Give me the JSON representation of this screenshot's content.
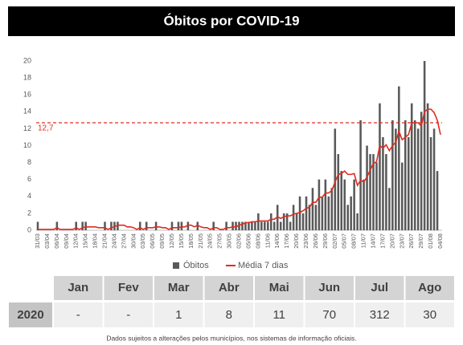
{
  "chart_data": {
    "type": "bar",
    "title": "Óbitos por COVID-19",
    "categories": [
      "31/03",
      null,
      null,
      "03/04",
      null,
      null,
      "06/04",
      null,
      null,
      "09/04",
      null,
      null,
      "12/04",
      null,
      null,
      "15/04",
      null,
      null,
      "18/04",
      null,
      null,
      "21/04",
      null,
      null,
      "24/04",
      null,
      null,
      "27/04",
      null,
      null,
      "30/04",
      null,
      null,
      "03/05",
      null,
      null,
      "06/05",
      null,
      null,
      "09/05",
      null,
      null,
      "12/05",
      null,
      null,
      "15/05",
      null,
      null,
      "18/05",
      null,
      null,
      "21/05",
      null,
      null,
      "24/05",
      null,
      null,
      "27/05",
      null,
      null,
      "30/05",
      null,
      null,
      "02/06",
      null,
      null,
      "05/06",
      null,
      null,
      "08/06",
      null,
      null,
      "11/06",
      null,
      null,
      "14/06",
      null,
      null,
      "17/06",
      null,
      null,
      "20/06",
      null,
      null,
      "23/06",
      null,
      null,
      "26/06",
      null,
      null,
      "29/06",
      null,
      null,
      "02/07",
      null,
      null,
      "05/07",
      null,
      null,
      "08/07",
      null,
      null,
      "11/07",
      null,
      null,
      "14/07",
      null,
      null,
      "17/07",
      null,
      null,
      "20/07",
      null,
      null,
      "23/07",
      null,
      null,
      "26/07",
      null,
      null,
      "29/07",
      null,
      null,
      "01/08",
      null,
      null,
      "04/08"
    ],
    "series": [
      {
        "name": "Óbitos",
        "type": "bar",
        "color": "#595959",
        "values": [
          1,
          0,
          0,
          0,
          0,
          0,
          1,
          0,
          0,
          0,
          0,
          0,
          1,
          0,
          1,
          1,
          0,
          0,
          0,
          0,
          0,
          1,
          0,
          1,
          1,
          1,
          0,
          0,
          0,
          0,
          0,
          0,
          1,
          0,
          1,
          0,
          0,
          1,
          0,
          0,
          0,
          0,
          1,
          0,
          1,
          1,
          0,
          1,
          0,
          0,
          1,
          0,
          0,
          0,
          0,
          1,
          0,
          0,
          0,
          1,
          0,
          1,
          1,
          1,
          1,
          1,
          1,
          1,
          1,
          2,
          1,
          1,
          1,
          2,
          1,
          3,
          1,
          2,
          2,
          1,
          3,
          2,
          4,
          2,
          4,
          3,
          5,
          3,
          6,
          4,
          6,
          4,
          5,
          12,
          9,
          7,
          6,
          3,
          4,
          6,
          2,
          13,
          6,
          10,
          9,
          9,
          8,
          15,
          11,
          9,
          5,
          13,
          12,
          17,
          8,
          13,
          11,
          15,
          13,
          12,
          14,
          20,
          15,
          11,
          12,
          7,
          0
        ]
      },
      {
        "name": "Média 7 dias",
        "type": "line",
        "color": "#e02b20",
        "values": [
          0.1,
          0.1,
          0.1,
          0.1,
          0.1,
          0.1,
          0.3,
          0.1,
          0.1,
          0.1,
          0.1,
          0.1,
          0.3,
          0.1,
          0.3,
          0.4,
          0.4,
          0.4,
          0.4,
          0.3,
          0.3,
          0.3,
          0.1,
          0.3,
          0.4,
          0.6,
          0.6,
          0.6,
          0.4,
          0.4,
          0.3,
          0.1,
          0.3,
          0.1,
          0.3,
          0.3,
          0.3,
          0.4,
          0.4,
          0.3,
          0.3,
          0.1,
          0.3,
          0.3,
          0.3,
          0.4,
          0.4,
          0.6,
          0.6,
          0.4,
          0.6,
          0.4,
          0.3,
          0.3,
          0.1,
          0.3,
          0.3,
          0.1,
          0.1,
          0.3,
          0.3,
          0.4,
          0.4,
          0.6,
          0.7,
          0.9,
          0.9,
          1.0,
          1.0,
          1.1,
          1.1,
          1.1,
          1.1,
          1.3,
          1.3,
          1.6,
          1.4,
          1.6,
          1.7,
          1.7,
          1.9,
          2.0,
          2.1,
          2.3,
          2.6,
          2.7,
          3.3,
          3.3,
          3.9,
          3.9,
          4.4,
          4.4,
          4.7,
          5.7,
          6.6,
          6.7,
          7.0,
          6.6,
          6.6,
          6.7,
          5.3,
          5.9,
          5.7,
          6.3,
          7.1,
          7.9,
          8.1,
          10.0,
          9.7,
          10.1,
          9.4,
          10.0,
          10.4,
          11.7,
          10.7,
          11.0,
          11.3,
          12.7,
          12.7,
          12.7,
          12.3,
          14.0,
          14.3,
          14.3,
          13.9,
          13.0,
          11.3
        ]
      }
    ],
    "reference": {
      "value": 12.7,
      "label": "12,7",
      "color": "#e02b20"
    },
    "ylim": [
      0,
      20
    ],
    "yticks": [
      0,
      2,
      4,
      6,
      8,
      10,
      12,
      14,
      16,
      18,
      20
    ],
    "grid": false,
    "legend": "bottom"
  },
  "table": {
    "header": [
      "Jan",
      "Fev",
      "Mar",
      "Abr",
      "Mai",
      "Jun",
      "Jul",
      "Ago"
    ],
    "rows": [
      [
        "2020",
        "-",
        "-",
        "1",
        "8",
        "11",
        "70",
        "312",
        "30"
      ]
    ]
  },
  "footer": "Dados sujeitos a alterações pelos municípios, nos sistemas de informação oficiais."
}
